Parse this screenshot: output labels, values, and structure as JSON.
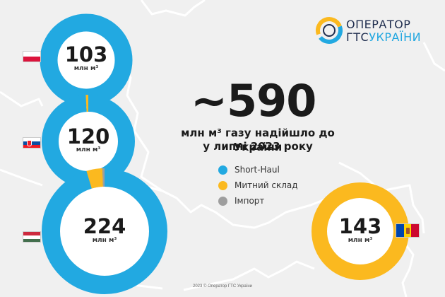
{
  "logo": {
    "line1": "ОПЕРАТОР",
    "line2a": "ГТС",
    "line2b": "УКРАЇНИ"
  },
  "headline": "~590",
  "subtitle_line1": "млн м³ газу надійшло до України",
  "subtitle_line2": "у липні 2023 року",
  "legend": [
    {
      "label": "Short-Haul",
      "color": "#22a9e1"
    },
    {
      "label": "Митний склад",
      "color": "#fbb91f"
    },
    {
      "label": "Імпорт",
      "color": "#9e9e9e"
    }
  ],
  "unit_label": "млн м³",
  "footer": "2023 © Оператор ГТС України",
  "colors": {
    "short_haul": "#22a9e1",
    "customs": "#fbb91f",
    "import": "#9e9e9e",
    "map_border": "#ffffff"
  },
  "chart_data": [
    {
      "type": "pie",
      "country": "Poland",
      "flag": "poland-flag",
      "total": 103,
      "series": [
        {
          "name": "Short-Haul",
          "value": 103
        },
        {
          "name": "Митний склад",
          "value": 0
        },
        {
          "name": "Імпорт",
          "value": 0
        }
      ]
    },
    {
      "type": "pie",
      "country": "Slovakia",
      "flag": "slovakia-flag",
      "total": 120,
      "series": [
        {
          "name": "Short-Haul",
          "value": 118.8
        },
        {
          "name": "Митний склад",
          "value": 1.2
        },
        {
          "name": "Імпорт",
          "value": 0
        }
      ]
    },
    {
      "type": "pie",
      "country": "Hungary",
      "flag": "hungary-flag",
      "total": 224,
      "series": [
        {
          "name": "Short-Haul",
          "value": 213.5
        },
        {
          "name": "Митний склад",
          "value": 9.2
        },
        {
          "name": "Імпорт",
          "value": 1.3
        }
      ]
    },
    {
      "type": "pie",
      "country": "Moldova",
      "flag": "moldova-flag",
      "total": 143,
      "series": [
        {
          "name": "Short-Haul",
          "value": 0
        },
        {
          "name": "Митний склад",
          "value": 143
        },
        {
          "name": "Імпорт",
          "value": 0
        }
      ]
    }
  ]
}
